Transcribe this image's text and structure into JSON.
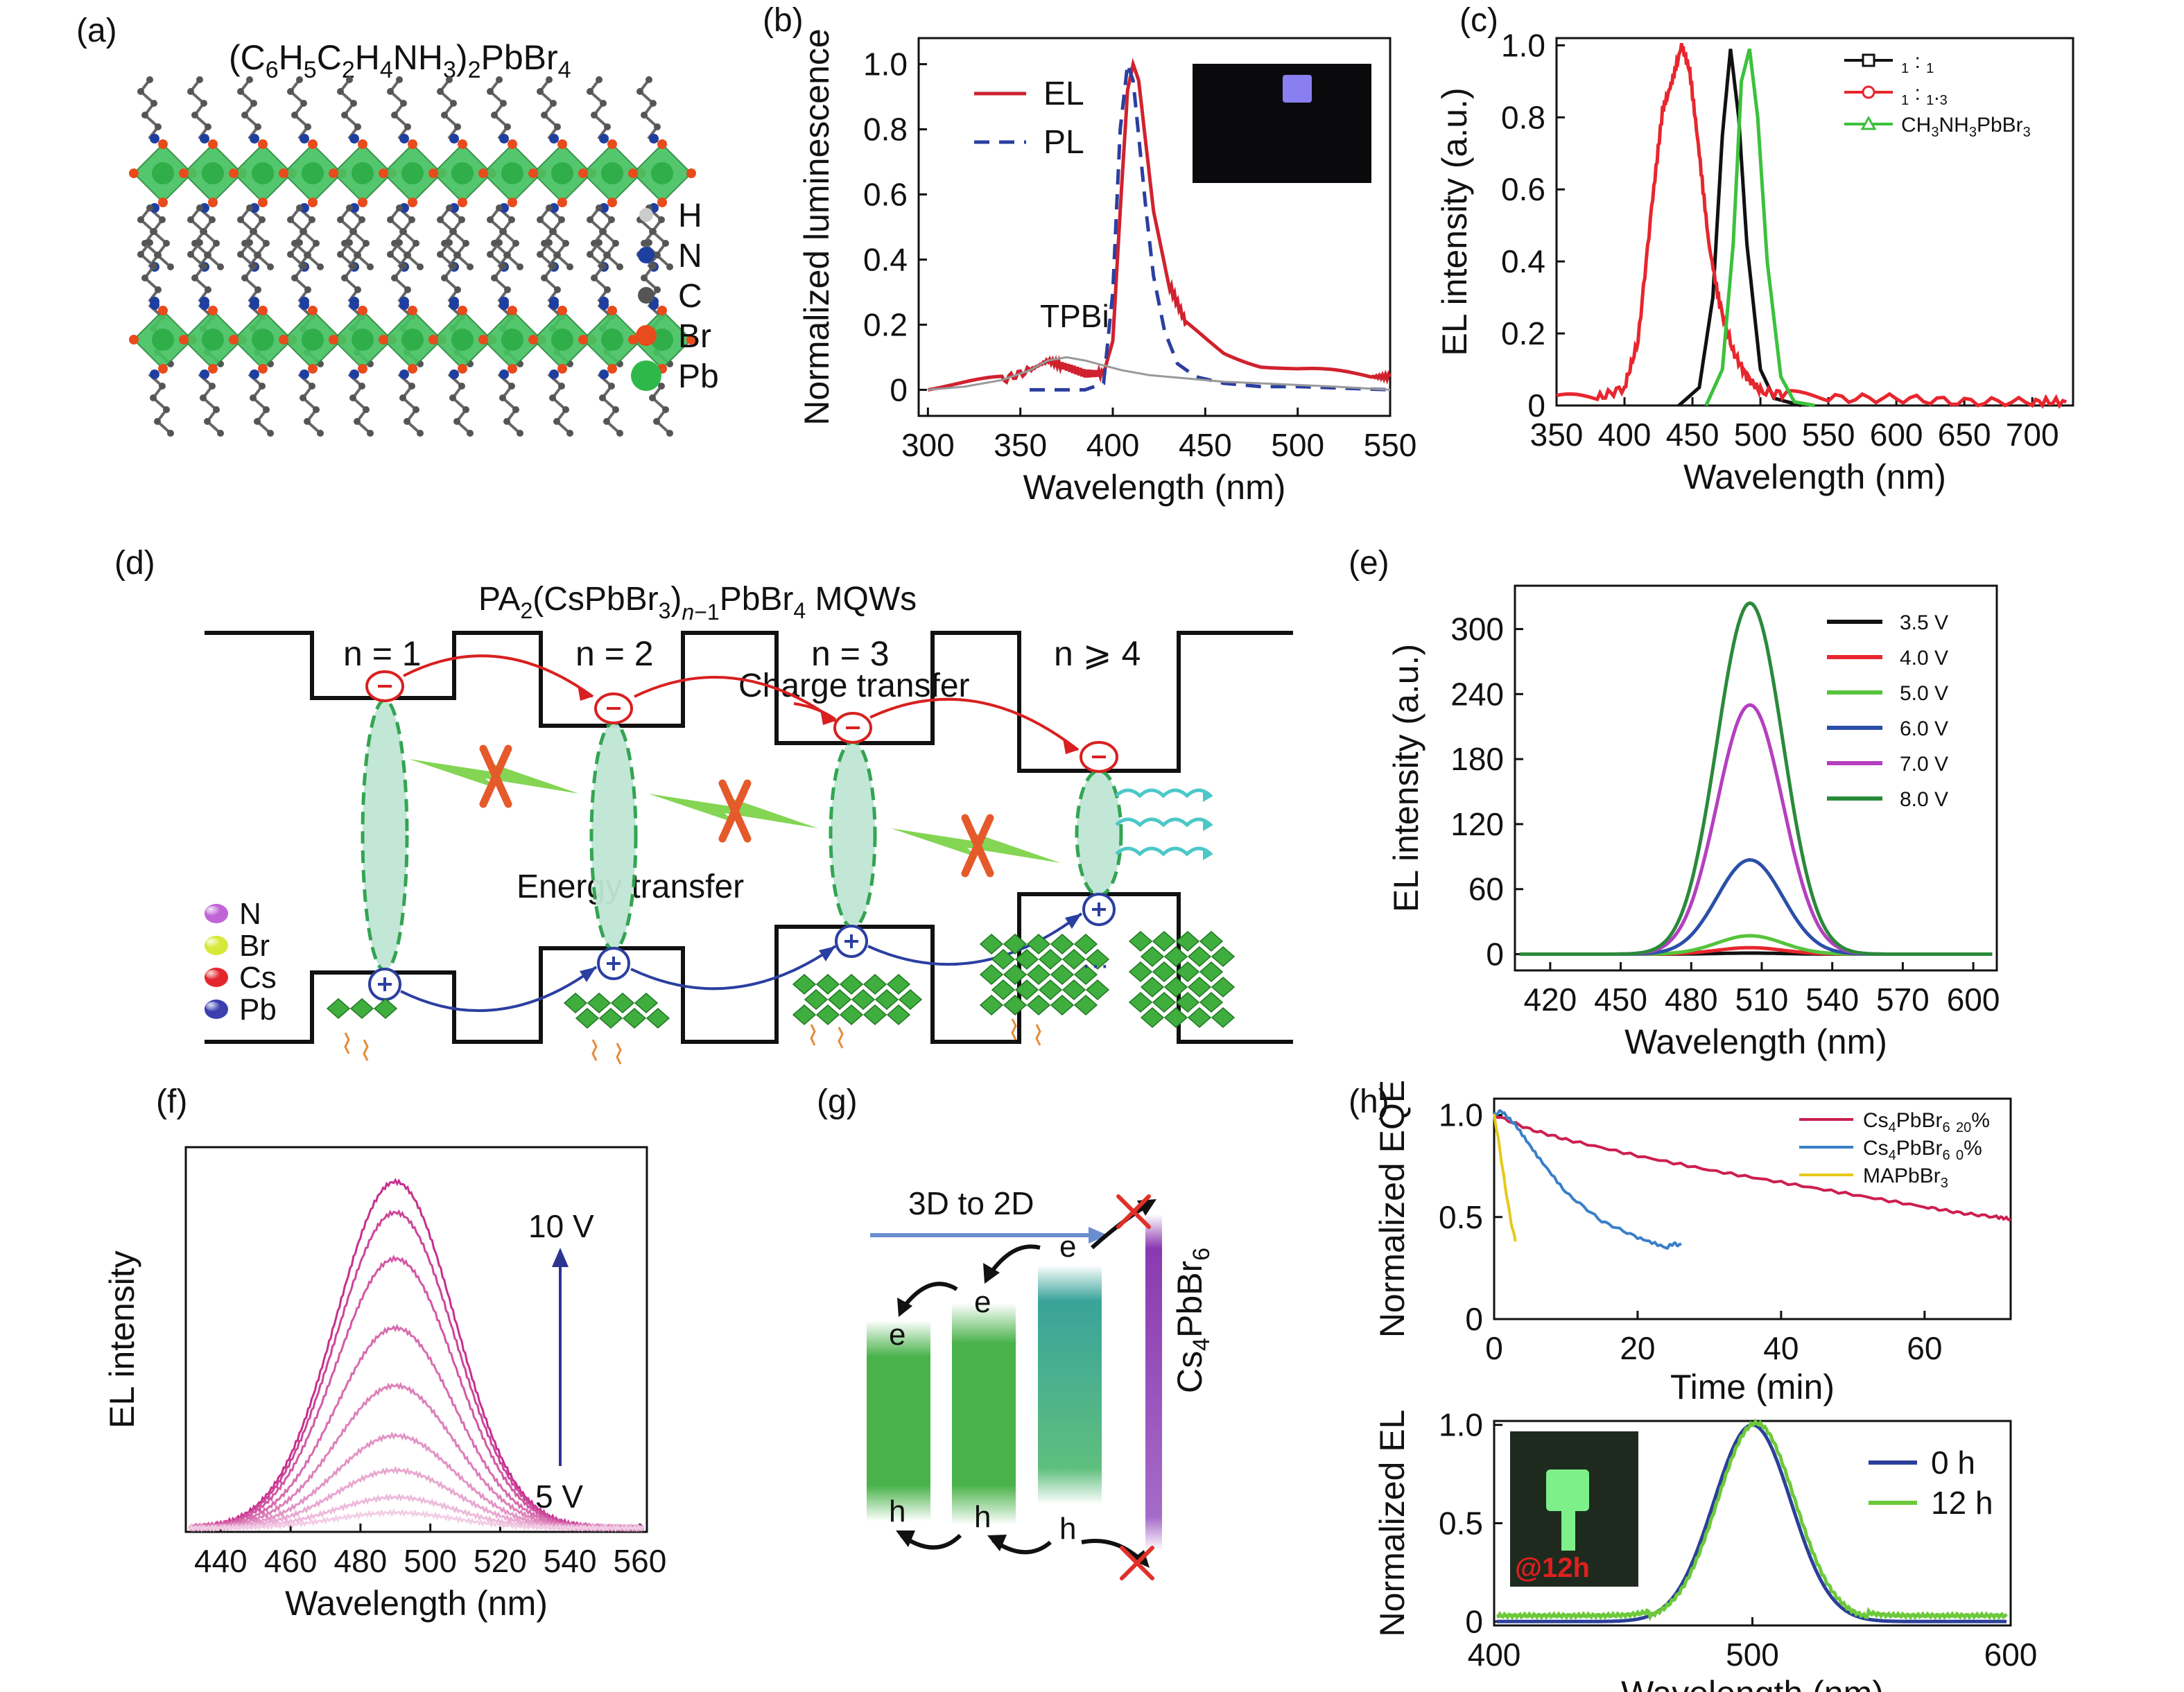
{
  "panels": {
    "a": {
      "label": "(a)",
      "formula": "(C6H5C2H4NH3)2PbBr4",
      "legend": [
        {
          "name": "H",
          "color": "#cccccc"
        },
        {
          "name": "N",
          "color": "#1f3fa0"
        },
        {
          "name": "C",
          "color": "#555555"
        },
        {
          "name": "Br",
          "color": "#e84b1c"
        },
        {
          "name": "Pb",
          "color": "#2fb84a"
        }
      ]
    },
    "b": {
      "label": "(b)",
      "annotation": "TPBi"
    },
    "c": {
      "label": "(c)"
    },
    "d": {
      "label": "(d)",
      "title": "PA2(CsPbBr3)n−1PbBr4 MQWs",
      "wells": [
        "n = 1",
        "n = 2",
        "n = 3",
        "n ⩾ 4"
      ],
      "charge_transfer": "Charge transfer",
      "energy_transfer": "Energy transfer",
      "legend": [
        {
          "name": "N",
          "color": "#c064d8"
        },
        {
          "name": "Br",
          "color": "#d6e83a"
        },
        {
          "name": "Cs",
          "color": "#e3262e"
        },
        {
          "name": "Pb",
          "color": "#3b3fb0"
        }
      ]
    },
    "e": {
      "label": "(e)"
    },
    "f": {
      "label": "(f)",
      "v_high": "10 V",
      "v_low": "5 V"
    },
    "g": {
      "label": "(g)",
      "arrow_text": "3D to 2D",
      "material": "Cs4PbBr6",
      "e": "e",
      "h": "h"
    },
    "h": {
      "label": "(h)",
      "inset_text": "@12h"
    }
  },
  "chart_data": [
    {
      "id": "b",
      "type": "line",
      "xlabel": "Wavelength (nm)",
      "ylabel": "Normalized luminescence",
      "xlim": [
        295,
        550
      ],
      "ylim": [
        -0.08,
        1.08
      ],
      "xticks": [
        300,
        350,
        400,
        450,
        500,
        550
      ],
      "yticks": [
        0,
        0.2,
        0.4,
        0.6,
        0.8,
        1.0
      ],
      "ytick_labels": [
        "0",
        "0.2",
        "0.4",
        "0.6",
        "0.8",
        "1.0"
      ],
      "series": [
        {
          "name": "EL",
          "color": "#d0222e",
          "dash": "",
          "x": [
            300,
            320,
            340,
            355,
            365,
            375,
            385,
            395,
            400,
            404,
            408,
            411,
            414,
            418,
            422,
            430,
            440,
            460,
            480,
            500,
            520,
            540,
            550
          ],
          "y": [
            0.01,
            0.02,
            0.03,
            0.06,
            0.09,
            0.07,
            0.05,
            0.05,
            0.15,
            0.55,
            0.92,
            1.0,
            0.95,
            0.75,
            0.55,
            0.33,
            0.2,
            0.12,
            0.08,
            0.06,
            0.05,
            0.04,
            0.04
          ]
        },
        {
          "name": "PL",
          "color": "#2b3fa0",
          "dash": "22,14",
          "x": [
            355,
            385,
            395,
            400,
            404,
            408,
            411,
            414,
            418,
            422,
            428,
            435,
            445,
            460,
            480,
            500,
            550
          ],
          "y": [
            0.0,
            0.0,
            0.02,
            0.3,
            0.8,
            1.0,
            0.95,
            0.78,
            0.55,
            0.35,
            0.18,
            0.08,
            0.04,
            0.02,
            0.01,
            0.01,
            0.0
          ]
        },
        {
          "name": "TPBi",
          "color": "#999999",
          "dash": "",
          "x": [
            300,
            320,
            340,
            355,
            365,
            375,
            385,
            395,
            405,
            420,
            440,
            460,
            480,
            500,
            520,
            550
          ],
          "y": [
            0.0,
            0.01,
            0.03,
            0.06,
            0.09,
            0.1,
            0.09,
            0.075,
            0.06,
            0.045,
            0.035,
            0.025,
            0.02,
            0.015,
            0.01,
            0.0
          ]
        }
      ],
      "legend": [
        {
          "name": "EL"
        },
        {
          "name": "PL"
        }
      ]
    },
    {
      "id": "c",
      "type": "line",
      "xlabel": "Wavelength (nm)",
      "ylabel": "EL intensity (a.u.)",
      "xlim": [
        350,
        730
      ],
      "ylim": [
        0,
        1.02
      ],
      "xticks": [
        350,
        400,
        450,
        500,
        550,
        600,
        650,
        700
      ],
      "yticks": [
        0,
        0.2,
        0.4,
        0.6,
        0.8,
        1.0
      ],
      "ytick_labels": [
        "0",
        "0.2",
        "0.4",
        "0.6",
        "0.8",
        "1.0"
      ],
      "series": [
        {
          "name": "1 : 1",
          "color": "#111111",
          "x": [
            440,
            455,
            465,
            472,
            478,
            484,
            490,
            500,
            510,
            530
          ],
          "y": [
            0.0,
            0.05,
            0.3,
            0.75,
            0.99,
            0.8,
            0.45,
            0.1,
            0.02,
            0.0
          ]
        },
        {
          "name": "1 : 1.3",
          "color": "#e8262e",
          "x": [
            350,
            380,
            400,
            410,
            420,
            428,
            435,
            442,
            448,
            455,
            462,
            470,
            480,
            490,
            500,
            520,
            550,
            600,
            650,
            700,
            725
          ],
          "y": [
            0.02,
            0.02,
            0.05,
            0.18,
            0.55,
            0.82,
            0.9,
            1.0,
            0.93,
            0.7,
            0.45,
            0.28,
            0.15,
            0.08,
            0.04,
            0.03,
            0.02,
            0.02,
            0.01,
            0.01,
            0.01
          ]
        },
        {
          "name": "CH3NH3PbBr3",
          "color": "#3cc13c",
          "x": [
            460,
            472,
            480,
            486,
            492,
            498,
            505,
            515,
            525,
            540
          ],
          "y": [
            0.0,
            0.1,
            0.45,
            0.9,
            0.99,
            0.8,
            0.4,
            0.08,
            0.01,
            0.0
          ]
        }
      ],
      "legend": [
        {
          "name": "1 : 1"
        },
        {
          "name": "1 : 1.3"
        },
        {
          "name": "CH3NH3PbBr3"
        }
      ]
    },
    {
      "id": "e",
      "type": "line",
      "xlabel": "Wavelength (nm)",
      "ylabel": "EL intensity (a.u.)",
      "xlim": [
        405,
        610
      ],
      "ylim": [
        -15,
        340
      ],
      "xticks": [
        420,
        450,
        480,
        510,
        540,
        570,
        600
      ],
      "yticks": [
        0,
        60,
        120,
        180,
        240,
        300
      ],
      "ytick_labels": [
        "0",
        "60",
        "120",
        "180",
        "240",
        "300"
      ],
      "peak_center": 505,
      "peak_width": 14,
      "series": [
        {
          "name": "3.5 V",
          "color": "#111111",
          "peak": 1
        },
        {
          "name": "4.0 V",
          "color": "#e8262e",
          "peak": 6
        },
        {
          "name": "5.0 V",
          "color": "#56c43c",
          "peak": 17
        },
        {
          "name": "6.0 V",
          "color": "#2b4fa8",
          "peak": 87
        },
        {
          "name": "7.0 V",
          "color": "#b43fbf",
          "peak": 230
        },
        {
          "name": "8.0 V",
          "color": "#2a8a3a",
          "peak": 324
        }
      ],
      "legend": [
        {
          "name": "3.5 V"
        },
        {
          "name": "4.0 V"
        },
        {
          "name": "5.0 V"
        },
        {
          "name": "6.0 V"
        },
        {
          "name": "7.0 V"
        },
        {
          "name": "8.0 V"
        }
      ]
    },
    {
      "id": "f",
      "type": "line",
      "xlabel": "Wavelength (nm)",
      "ylabel": "EL intensity",
      "xlim": [
        430,
        562
      ],
      "ylim": [
        0,
        1.0
      ],
      "xticks": [
        440,
        460,
        480,
        500,
        520,
        540,
        560
      ],
      "peak_center": 490,
      "peak_width": 17,
      "series": [
        {
          "name": "",
          "color": "#c62f8e",
          "peak": 0.9
        },
        {
          "name": "",
          "color": "#cd449a",
          "peak": 0.82
        },
        {
          "name": "",
          "color": "#d258a4",
          "peak": 0.7
        },
        {
          "name": "",
          "color": "#d76caf",
          "peak": 0.52
        },
        {
          "name": "",
          "color": "#dd80ba",
          "peak": 0.37
        },
        {
          "name": "",
          "color": "#e294c5",
          "peak": 0.24
        },
        {
          "name": "",
          "color": "#e8a8d0",
          "peak": 0.15
        },
        {
          "name": "",
          "color": "#edbadb",
          "peak": 0.08
        },
        {
          "name": "",
          "color": "#f2cde5",
          "peak": 0.04
        }
      ]
    },
    {
      "id": "h1",
      "type": "line",
      "xlabel": "Time (min)",
      "ylabel": "Normalized EQE",
      "xlim": [
        0,
        72
      ],
      "ylim": [
        0,
        1.08
      ],
      "xticks": [
        0,
        20,
        40,
        60
      ],
      "yticks": [
        0,
        0.5,
        1.0
      ],
      "ytick_labels": [
        "0",
        "0.5",
        "1.0"
      ],
      "series": [
        {
          "name": "Cs4PbBr6 20%",
          "color": "#cc1f4f",
          "x": [
            0,
            5,
            10,
            20,
            30,
            40,
            50,
            60,
            65,
            70,
            72
          ],
          "y": [
            1.0,
            0.93,
            0.88,
            0.8,
            0.73,
            0.67,
            0.61,
            0.55,
            0.52,
            0.5,
            0.49
          ]
        },
        {
          "name": "Cs4PbBr6 0%",
          "color": "#3a7fc8",
          "x": [
            0,
            1,
            3,
            6,
            10,
            15,
            20,
            24,
            25,
            26
          ],
          "y": [
            1.0,
            1.02,
            0.95,
            0.8,
            0.62,
            0.48,
            0.4,
            0.35,
            0.37,
            0.36
          ]
        },
        {
          "name": "MAPbBr3",
          "color": "#e6c81a",
          "x": [
            0,
            0.5,
            1,
            1.5,
            2,
            2.5,
            3
          ],
          "y": [
            1.0,
            0.9,
            0.78,
            0.66,
            0.55,
            0.45,
            0.38
          ]
        }
      ],
      "legend": [
        {
          "name": "Cs4PbBr6 20%"
        },
        {
          "name": "Cs4PbBr6 0%"
        },
        {
          "name": "MAPbBr3"
        }
      ]
    },
    {
      "id": "h2",
      "type": "line",
      "xlabel": "Wavelength (nm)",
      "ylabel": "Normalized EL",
      "xlim": [
        400,
        600
      ],
      "ylim": [
        -0.02,
        1.02
      ],
      "xticks": [
        400,
        500,
        600
      ],
      "yticks": [
        0,
        0.5,
        1.0
      ],
      "ytick_labels": [
        "0",
        "0.5",
        "1.0"
      ],
      "peak_center": 500,
      "peak_width": 15,
      "series": [
        {
          "name": "0 h",
          "color": "#2b3f9a",
          "peak": 1.0,
          "floor": 0.0
        },
        {
          "name": "12 h",
          "color": "#6cc93a",
          "peak": 1.0,
          "floor": 0.03
        }
      ],
      "legend": [
        {
          "name": "0 h"
        },
        {
          "name": "12 h"
        }
      ]
    }
  ]
}
